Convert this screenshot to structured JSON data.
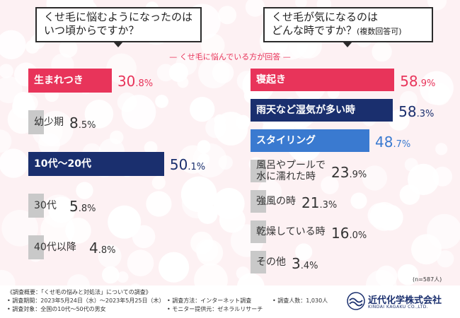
{
  "questions": {
    "left": {
      "line1": "くせ毛に悩むようになったのは",
      "line2": "いつ頃からですか？"
    },
    "right": {
      "line1": "くせ毛が気になるのは",
      "line2": "どんな時ですか？",
      "line2_note": "(複数回答可)"
    }
  },
  "subtitle": "— くせ毛に悩んでいる方が回答 —",
  "sample_size": "(n=587人)",
  "colors": {
    "red": "#e8345a",
    "navy": "#1a2f6e",
    "blue": "#3a7ad0",
    "gray": "#c9c9c9"
  },
  "chart_data": [
    {
      "type": "bar",
      "orientation": "horizontal",
      "title": "くせ毛に悩むようになったのはいつ頃からですか？",
      "categories": [
        "生まれつき",
        "幼少期",
        "10代〜20代",
        "30代",
        "40代以降"
      ],
      "values": [
        30.8,
        8.5,
        50.1,
        5.8,
        4.8
      ],
      "labels_int": [
        "30",
        "8",
        "50",
        "5",
        "4"
      ],
      "labels_dec": [
        ".8",
        ".5",
        ".1",
        ".8",
        ".8"
      ],
      "unit": "%",
      "bar_colors": [
        "red",
        "gray",
        "navy",
        "gray",
        "gray"
      ]
    },
    {
      "type": "bar",
      "orientation": "horizontal",
      "title": "くせ毛が気になるのはどんな時ですか？(複数回答可)",
      "categories": [
        "寝起き",
        "雨天など湿気が多い時",
        "スタイリング",
        "風呂やプールで水に濡れた時",
        "強風の時",
        "乾燥している時",
        "その他"
      ],
      "display_lines": [
        [
          "寝起き"
        ],
        [
          "雨天など湿気が多い時"
        ],
        [
          "スタイリング"
        ],
        [
          "風呂やプールで",
          "水に濡れた時"
        ],
        [
          "強風の時"
        ],
        [
          "乾燥している時"
        ],
        [
          "その他"
        ]
      ],
      "values": [
        58.9,
        58.3,
        48.7,
        23.9,
        21.3,
        16.0,
        3.4
      ],
      "labels_int": [
        "58",
        "58",
        "48",
        "23",
        "21",
        "16",
        "3"
      ],
      "labels_dec": [
        ".9",
        ".3",
        ".7",
        ".9",
        ".3",
        ".0",
        ".4"
      ],
      "unit": "%",
      "bar_colors": [
        "red",
        "navy",
        "blue",
        "gray",
        "gray",
        "gray",
        "gray"
      ]
    }
  ],
  "footer": {
    "col1": [
      "《調査概要：「くせ毛の悩みと対処法」についての調査》",
      "• 調査期間：2023年5月24日（水）〜2023年5月25日（木）",
      "• 調査対象：全国の10代〜50代の男女"
    ],
    "col2": [
      "• 調査方法：インターネット調査",
      "• モニター提供元：ゼネラルリサーチ"
    ],
    "col3": [
      "• 調査人数：1,030人"
    ]
  },
  "logo": {
    "name": "近代化学株式会社",
    "sub": "KINDAI KAGAKU CO.,LTD.",
    "icon": "wave-logo-icon"
  }
}
